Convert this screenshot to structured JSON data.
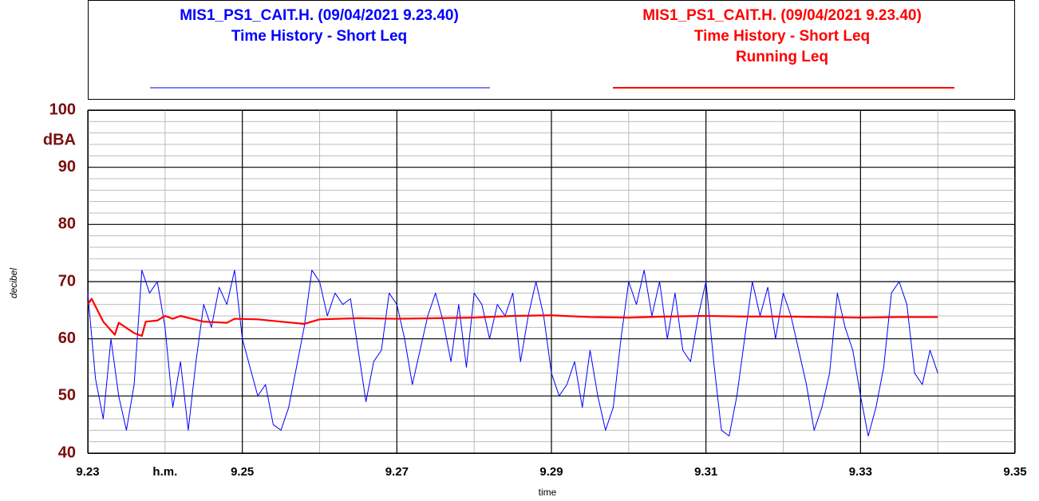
{
  "chart_data": {
    "type": "line",
    "xlabel": "time",
    "xunit": "h.m.",
    "xunit_at": 9.24,
    "ylabel": "decibel",
    "yunit": "dBA",
    "xlim": [
      9.23,
      9.35
    ],
    "xticks": [
      9.23,
      9.25,
      9.27,
      9.29,
      9.31,
      9.33,
      9.35
    ],
    "minor_xticks": [
      9.24,
      9.26,
      9.28,
      9.3,
      9.32,
      9.34
    ],
    "ylim": [
      40,
      100
    ],
    "yticks": [
      40,
      50,
      60,
      70,
      80,
      90,
      100
    ],
    "minor_yticks": [
      42,
      44,
      46,
      48,
      52,
      54,
      56,
      58,
      62,
      64,
      66,
      68,
      72,
      74,
      76,
      78,
      82,
      84,
      86,
      88,
      92,
      94,
      96,
      98
    ],
    "grid": true,
    "series": [
      {
        "name": "MIS1_PS1_CAIT.H. (09/04/2021 9.23.40)",
        "description": [
          "Time History - Short Leq"
        ],
        "color": "#0000ff",
        "x": [
          9.23,
          9.231,
          9.232,
          9.233,
          9.234,
          9.235,
          9.236,
          9.237,
          9.238,
          9.239,
          9.24,
          9.241,
          9.242,
          9.243,
          9.244,
          9.245,
          9.246,
          9.247,
          9.248,
          9.249,
          9.25,
          9.251,
          9.252,
          9.253,
          9.254,
          9.255,
          9.256,
          9.257,
          9.258,
          9.259,
          9.26,
          9.261,
          9.262,
          9.263,
          9.264,
          9.265,
          9.266,
          9.267,
          9.268,
          9.269,
          9.27,
          9.271,
          9.272,
          9.273,
          9.274,
          9.275,
          9.276,
          9.277,
          9.278,
          9.279,
          9.28,
          9.281,
          9.282,
          9.283,
          9.284,
          9.285,
          9.286,
          9.287,
          9.288,
          9.289,
          9.29,
          9.291,
          9.292,
          9.293,
          9.294,
          9.295,
          9.296,
          9.297,
          9.298,
          9.299,
          9.3,
          9.301,
          9.302,
          9.303,
          9.304,
          9.305,
          9.306,
          9.307,
          9.308,
          9.309,
          9.31,
          9.311,
          9.312,
          9.313,
          9.314,
          9.315,
          9.316,
          9.317,
          9.318,
          9.319,
          9.32,
          9.321,
          9.322,
          9.323,
          9.324,
          9.325,
          9.326,
          9.327,
          9.328,
          9.329,
          9.33,
          9.331,
          9.332,
          9.333,
          9.334,
          9.335,
          9.336,
          9.337,
          9.338,
          9.339,
          9.34
        ],
        "values": [
          68,
          53,
          46,
          60,
          50,
          44,
          52,
          72,
          68,
          70,
          62,
          48,
          56,
          44,
          56,
          66,
          62,
          69,
          66,
          72,
          60,
          55,
          50,
          52,
          45,
          44,
          48,
          55,
          62,
          72,
          70,
          64,
          68,
          66,
          67,
          58,
          49,
          56,
          58,
          68,
          66,
          60,
          52,
          58,
          64,
          68,
          63,
          56,
          66,
          55,
          68,
          66,
          60,
          66,
          64,
          68,
          56,
          64,
          70,
          64,
          54,
          50,
          52,
          56,
          48,
          58,
          50,
          44,
          48,
          60,
          70,
          66,
          72,
          64,
          70,
          60,
          68,
          58,
          56,
          64,
          70,
          56,
          44,
          43,
          50,
          60,
          70,
          64,
          69,
          60,
          68,
          64,
          58,
          52,
          44,
          48,
          54,
          68,
          62,
          58,
          50,
          43,
          48,
          55,
          68,
          70,
          66,
          54,
          52,
          58,
          54
        ]
      },
      {
        "name": "MIS1_PS1_CAIT.H. (09/04/2021 9.23.40)",
        "description": [
          "Time History - Short Leq",
          "Running Leq"
        ],
        "color": "#ff0000",
        "x": [
          9.23,
          9.2305,
          9.232,
          9.2335,
          9.234,
          9.236,
          9.237,
          9.2375,
          9.239,
          9.24,
          9.241,
          9.242,
          9.245,
          9.248,
          9.249,
          9.252,
          9.255,
          9.258,
          9.26,
          9.265,
          9.27,
          9.275,
          9.28,
          9.285,
          9.29,
          9.295,
          9.3,
          9.305,
          9.31,
          9.315,
          9.32,
          9.325,
          9.33,
          9.335,
          9.34
        ],
        "values": [
          66,
          67,
          63,
          60.7,
          62.8,
          61,
          60.5,
          63,
          63.2,
          64,
          63.5,
          64,
          63,
          62.8,
          63.5,
          63.4,
          63,
          62.6,
          63.4,
          63.6,
          63.5,
          63.6,
          63.7,
          64,
          64.1,
          63.8,
          63.7,
          63.9,
          64,
          63.9,
          63.9,
          63.8,
          63.7,
          63.8,
          63.8
        ]
      }
    ]
  }
}
